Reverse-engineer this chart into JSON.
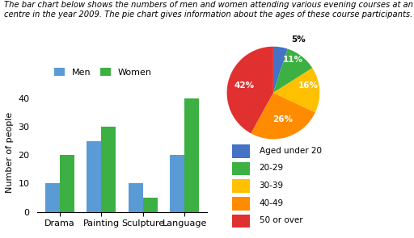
{
  "title_text": "The bar chart below shows the numbers of men and women attending various evening courses at an adult education\ncentre in the year 2009. The pie chart gives information about the ages of these course participants.",
  "bar_categories": [
    "Drama",
    "Painting",
    "Sculpture",
    "Language"
  ],
  "men_values": [
    10,
    25,
    10,
    20
  ],
  "women_values": [
    20,
    30,
    5,
    40
  ],
  "men_color": "#5B9BD5",
  "women_color": "#3CB043",
  "bar_ylabel": "Number of people",
  "bar_ylim": [
    0,
    42
  ],
  "bar_yticks": [
    0,
    10,
    20,
    30,
    40
  ],
  "pie_values": [
    5,
    11,
    16,
    26,
    42
  ],
  "pie_labels": [
    "5%",
    "11%",
    "16%",
    "26%",
    "42%"
  ],
  "pie_colors": [
    "#4472C4",
    "#3CB043",
    "#FFC000",
    "#FF8C00",
    "#E03030"
  ],
  "pie_legend_labels": [
    "Aged under 20",
    "20-29",
    "30-39",
    "40-49",
    "50 or over"
  ],
  "pie_legend_colors": [
    "#4472C4",
    "#3CB043",
    "#FFC000",
    "#FF8C00",
    "#E03030"
  ],
  "background_color": "#FFFFFF",
  "text_color": "#000000",
  "title_fontsize": 7.2,
  "label_fontsize": 8,
  "legend_fontsize": 7.5
}
